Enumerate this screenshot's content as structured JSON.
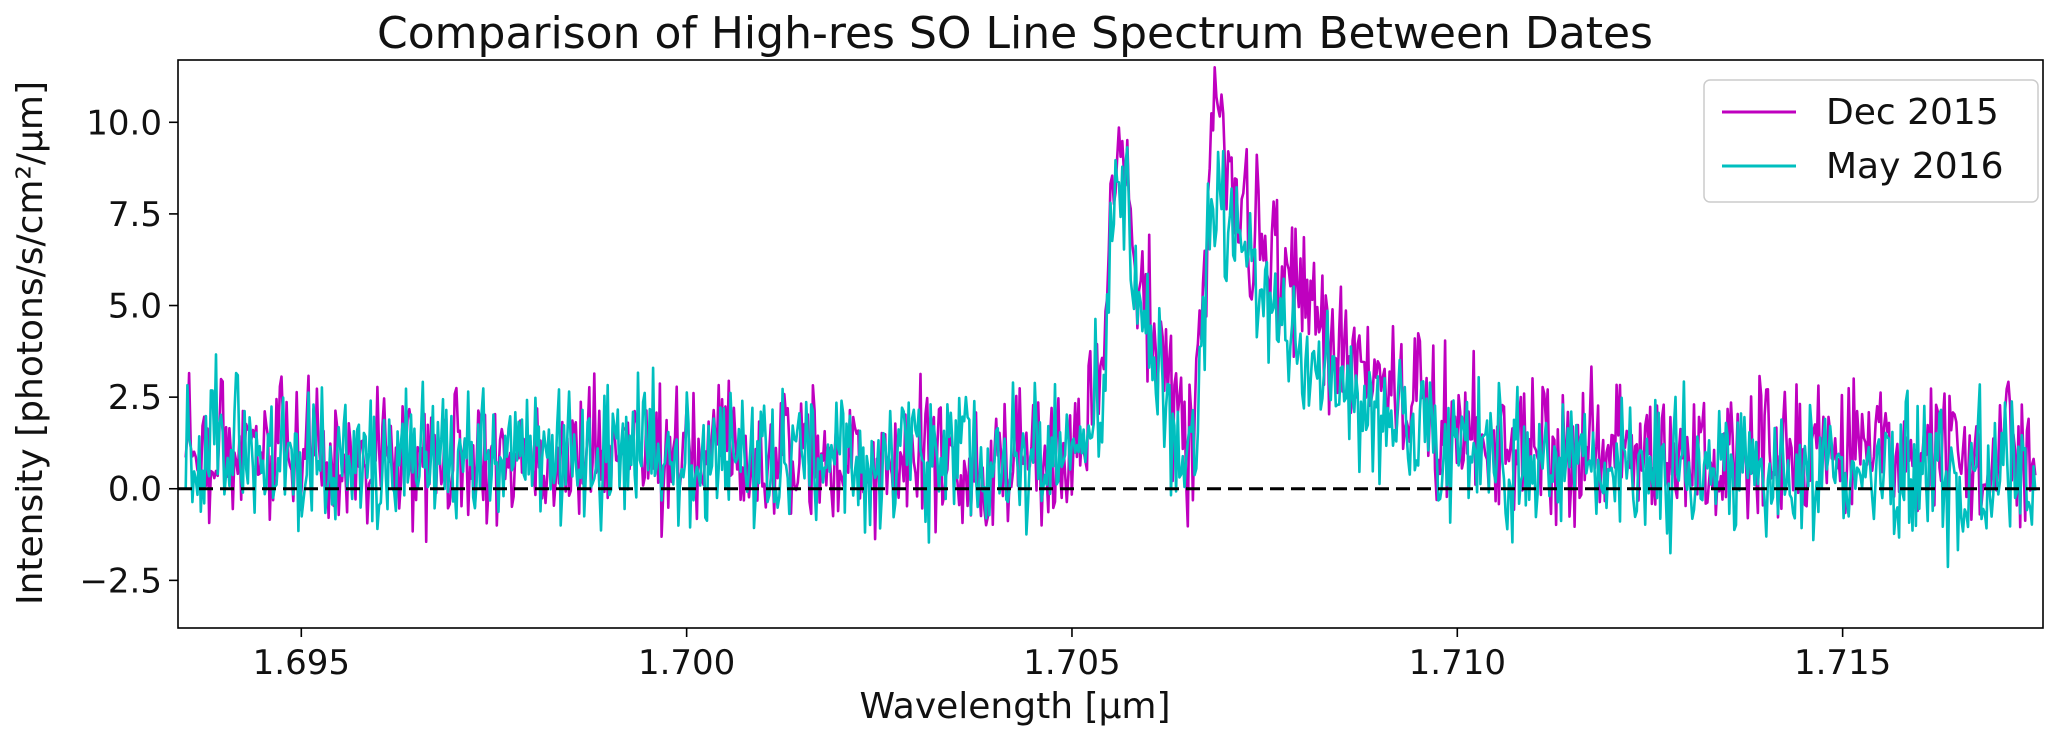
{
  "chart_data": {
    "type": "line",
    "title": "Comparison of High-res SO Line Spectrum Between Dates",
    "xlabel": "Wavelength [μm]",
    "ylabel": "Intensity [photons/s/cm²/μm]",
    "xlim": [
      1.6934,
      1.7176
    ],
    "ylim": [
      -3.8,
      11.7
    ],
    "xticks": [
      1.695,
      1.7,
      1.705,
      1.71,
      1.715
    ],
    "xtick_labels": [
      "1.695",
      "1.700",
      "1.705",
      "1.710",
      "1.715"
    ],
    "yticks": [
      -2.5,
      0.0,
      2.5,
      5.0,
      7.5,
      10.0
    ],
    "ytick_labels": [
      "−2.5",
      "0.0",
      "2.5",
      "5.0",
      "7.5",
      "10.0"
    ],
    "reference_line": {
      "y": 0,
      "style": "dashed",
      "color": "#000000"
    },
    "legend_position": "top-right",
    "series": [
      {
        "name": "Dec 2015",
        "color": "#bf00bf",
        "x": [
          1.6935,
          1.694,
          1.6945,
          1.695,
          1.6955,
          1.696,
          1.6965,
          1.697,
          1.6975,
          1.698,
          1.6985,
          1.699,
          1.6995,
          1.7,
          1.7005,
          1.701,
          1.7015,
          1.702,
          1.7025,
          1.703,
          1.7035,
          1.704,
          1.7045,
          1.705,
          1.7052,
          1.7054,
          1.7055,
          1.7056,
          1.7057,
          1.7058,
          1.706,
          1.7062,
          1.7064,
          1.7066,
          1.7068,
          1.7069,
          1.707,
          1.7072,
          1.7074,
          1.7076,
          1.7078,
          1.708,
          1.7082,
          1.7084,
          1.7086,
          1.7088,
          1.709,
          1.7095,
          1.71,
          1.7105,
          1.711,
          1.7115,
          1.712,
          1.7125,
          1.713,
          1.7135,
          1.714,
          1.7145,
          1.715,
          1.7155,
          1.716,
          1.7165,
          1.717,
          1.7175
        ],
        "values": [
          1.7,
          0.9,
          1.2,
          0.8,
          0.6,
          1.0,
          0.9,
          1.1,
          0.7,
          0.9,
          1.0,
          1.2,
          0.8,
          0.9,
          1.1,
          0.7,
          1.0,
          0.8,
          0.9,
          0.7,
          0.8,
          0.6,
          0.7,
          1.0,
          1.6,
          3.5,
          7.5,
          9.6,
          8.4,
          6.0,
          4.5,
          3.3,
          1.6,
          1.2,
          9.5,
          10.9,
          8.9,
          7.4,
          6.9,
          6.3,
          6.0,
          5.4,
          4.5,
          4.0,
          3.6,
          3.2,
          3.0,
          2.4,
          1.7,
          1.4,
          1.1,
          1.0,
          1.2,
          0.9,
          1.0,
          0.8,
          1.1,
          0.9,
          0.8,
          0.9,
          0.7,
          0.8,
          0.9,
          1.0
        ]
      },
      {
        "name": "May 2016",
        "color": "#00bfbf",
        "x": [
          1.6935,
          1.694,
          1.6945,
          1.695,
          1.6955,
          1.696,
          1.6965,
          1.697,
          1.6975,
          1.698,
          1.6985,
          1.699,
          1.6995,
          1.7,
          1.7005,
          1.701,
          1.7015,
          1.702,
          1.7025,
          1.703,
          1.7035,
          1.704,
          1.7045,
          1.705,
          1.7052,
          1.7054,
          1.7055,
          1.7056,
          1.7057,
          1.7058,
          1.706,
          1.7062,
          1.7064,
          1.7066,
          1.7068,
          1.7069,
          1.707,
          1.7072,
          1.7074,
          1.7076,
          1.7078,
          1.708,
          1.7082,
          1.7084,
          1.7086,
          1.7088,
          1.709,
          1.7095,
          1.71,
          1.7105,
          1.711,
          1.7115,
          1.712,
          1.7125,
          1.713,
          1.7135,
          1.714,
          1.7145,
          1.715,
          1.7155,
          1.716,
          1.7165,
          1.717,
          1.7175
        ],
        "values": [
          0.8,
          1.2,
          0.9,
          0.6,
          1.1,
          0.8,
          1.0,
          0.9,
          0.7,
          1.0,
          0.8,
          0.9,
          1.1,
          0.6,
          1.0,
          0.9,
          0.8,
          1.0,
          0.7,
          0.9,
          0.8,
          0.6,
          0.8,
          0.9,
          1.5,
          3.0,
          6.5,
          8.9,
          7.4,
          5.0,
          3.8,
          2.8,
          1.3,
          0.9,
          7.5,
          8.4,
          7.4,
          6.4,
          5.7,
          5.0,
          4.5,
          4.0,
          3.3,
          2.9,
          2.6,
          2.3,
          2.1,
          1.7,
          1.3,
          1.0,
          0.6,
          0.7,
          0.5,
          0.6,
          0.7,
          0.5,
          0.4,
          0.6,
          0.5,
          0.4,
          0.3,
          0.4,
          0.3,
          0.5
        ]
      }
    ]
  }
}
